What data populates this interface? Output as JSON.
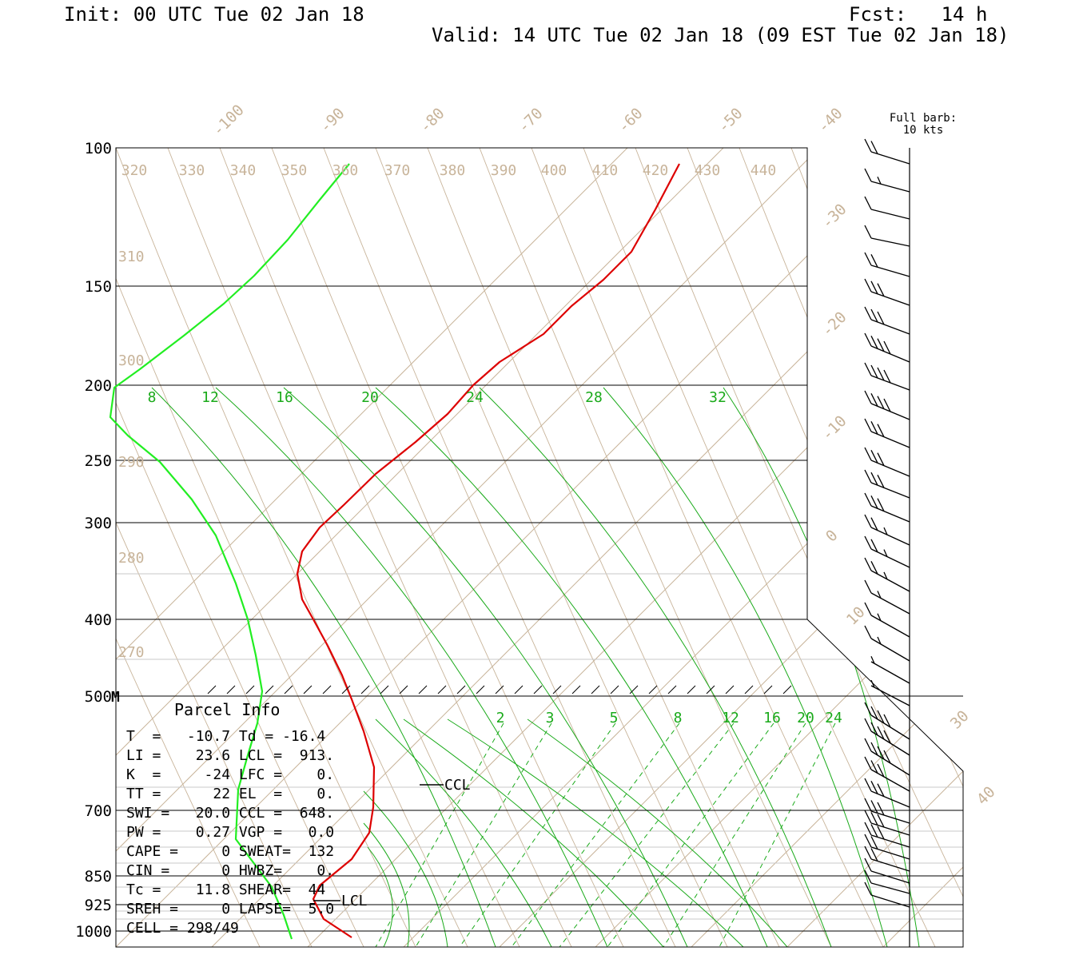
{
  "header": {
    "init": "Init: 00 UTC Tue 02 Jan 18",
    "fcst": "Fcst:   14 h",
    "valid": "Valid: 14 UTC Tue 02 Jan 18 (09 EST Tue 02 Jan 18)"
  },
  "barb_legend": {
    "line1": "Full barb:",
    "line2": "10 kts"
  },
  "parcel_info": {
    "title": "Parcel Info",
    "rows": [
      "T  =   -10.7 Td = -16.4",
      "LI =    23.6 LCL =  913.",
      "K  =     -24 LFC =    0.",
      "TT =      22 EL  =    0.",
      "SWI =   20.0 CCL =  648.",
      "PW =    0.27 VGP =   0.0",
      "CAPE =     0 SWEAT=  132",
      "CIN =      0 HWBZ=    0.",
      "Tc =    11.8 SHEAR=  44",
      "SREH =     0 LAPSE=  5.0",
      "CELL = 298/49"
    ]
  },
  "markers": {
    "ccl": "CCL",
    "lcl": "LCL",
    "m500": "M"
  },
  "colors": {
    "temperature": "#dd0000",
    "dewpoint": "#22ee22",
    "isotherm": "#c8b49a",
    "mixing_ratio": "#1aaa1a",
    "isobar": "#000000"
  },
  "chart_data": {
    "type": "line",
    "xlabel": "",
    "ylabel": "",
    "pressure_levels": [
      "100",
      "150",
      "200",
      "250",
      "300",
      "400",
      "500",
      "700",
      "850",
      "925",
      "1000"
    ],
    "isotherm_labels": [
      "-100",
      "-90",
      "-80",
      "-70",
      "-60",
      "-50",
      "-40",
      "-30",
      "-20",
      "-10",
      "0",
      "10",
      "30",
      "40"
    ],
    "upper_theta_labels": [
      "320",
      "330",
      "340",
      "350",
      "360",
      "370",
      "380",
      "390",
      "400",
      "410",
      "420",
      "430",
      "440"
    ],
    "left_theta_labels": [
      "310",
      "300",
      "290",
      "280",
      "270"
    ],
    "upper_mixing_labels": [
      "8",
      "12",
      "16",
      "20",
      "24",
      "28",
      "32"
    ],
    "lower_mixing_labels": [
      "2",
      "3",
      "5",
      "8",
      "12",
      "16",
      "20",
      "24"
    ],
    "series": [
      {
        "name": "",
        "color": "#dd0000",
        "points": [
          [
            850,
            205
          ],
          [
            820,
            262
          ],
          [
            790,
            315
          ],
          [
            755,
            350
          ],
          [
            715,
            383
          ],
          [
            680,
            418
          ],
          [
            625,
            453
          ],
          [
            592,
            482
          ],
          [
            560,
            518
          ],
          [
            520,
            553
          ],
          [
            470,
            593
          ],
          [
            430,
            632
          ],
          [
            400,
            660
          ],
          [
            378,
            690
          ],
          [
            372,
            718
          ],
          [
            378,
            750
          ],
          [
            392,
            775
          ],
          [
            410,
            808
          ],
          [
            428,
            845
          ],
          [
            440,
            875
          ],
          [
            455,
            915
          ],
          [
            468,
            960
          ],
          [
            467,
            1010
          ],
          [
            462,
            1042
          ],
          [
            440,
            1075
          ],
          [
            400,
            1108
          ],
          [
            392,
            1125
          ],
          [
            405,
            1150
          ],
          [
            440,
            1173
          ]
        ]
      },
      {
        "name": "",
        "color": "#22ee22",
        "points": [
          [
            437,
            205
          ],
          [
            400,
            250
          ],
          [
            360,
            300
          ],
          [
            318,
            345
          ],
          [
            280,
            380
          ],
          [
            230,
            420
          ],
          [
            175,
            462
          ],
          [
            143,
            485
          ],
          [
            138,
            522
          ],
          [
            160,
            545
          ],
          [
            200,
            578
          ],
          [
            240,
            625
          ],
          [
            270,
            670
          ],
          [
            295,
            730
          ],
          [
            310,
            775
          ],
          [
            320,
            820
          ],
          [
            328,
            865
          ],
          [
            322,
            905
          ],
          [
            310,
            945
          ],
          [
            298,
            988
          ],
          [
            295,
            1050
          ],
          [
            340,
            1110
          ],
          [
            355,
            1145
          ],
          [
            365,
            1175
          ]
        ]
      }
    ]
  }
}
